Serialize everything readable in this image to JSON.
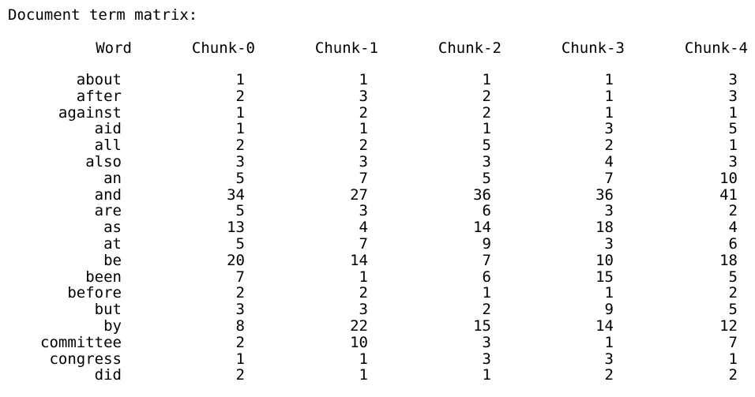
{
  "title": "Document term matrix:",
  "headers": [
    "Word",
    "Chunk-0",
    "Chunk-1",
    "Chunk-2",
    "Chunk-3",
    "Chunk-4"
  ],
  "rows": [
    [
      "about",
      "1",
      "1",
      "1",
      "1",
      "3"
    ],
    [
      "after",
      "2",
      "3",
      "2",
      "1",
      "3"
    ],
    [
      "against",
      "1",
      "2",
      "2",
      "1",
      "1"
    ],
    [
      "aid",
      "1",
      "1",
      "1",
      "3",
      "5"
    ],
    [
      "all",
      "2",
      "2",
      "5",
      "2",
      "1"
    ],
    [
      "also",
      "3",
      "3",
      "3",
      "4",
      "3"
    ],
    [
      "an",
      "5",
      "7",
      "5",
      "7",
      "10"
    ],
    [
      "and",
      "34",
      "27",
      "36",
      "36",
      "41"
    ],
    [
      "are",
      "5",
      "3",
      "6",
      "3",
      "2"
    ],
    [
      "as",
      "13",
      "4",
      "14",
      "18",
      "4"
    ],
    [
      "at",
      "5",
      "7",
      "9",
      "3",
      "6"
    ],
    [
      "be",
      "20",
      "14",
      "7",
      "10",
      "18"
    ],
    [
      "been",
      "7",
      "1",
      "6",
      "15",
      "5"
    ],
    [
      "before",
      "2",
      "2",
      "1",
      "1",
      "2"
    ],
    [
      "but",
      "3",
      "3",
      "2",
      "9",
      "5"
    ],
    [
      "by",
      "8",
      "22",
      "15",
      "14",
      "12"
    ],
    [
      "committee",
      "2",
      "10",
      "3",
      "1",
      "7"
    ],
    [
      "congress",
      "1",
      "1",
      "3",
      "3",
      "1"
    ],
    [
      "did",
      "2",
      "1",
      "1",
      "2",
      "2"
    ]
  ]
}
